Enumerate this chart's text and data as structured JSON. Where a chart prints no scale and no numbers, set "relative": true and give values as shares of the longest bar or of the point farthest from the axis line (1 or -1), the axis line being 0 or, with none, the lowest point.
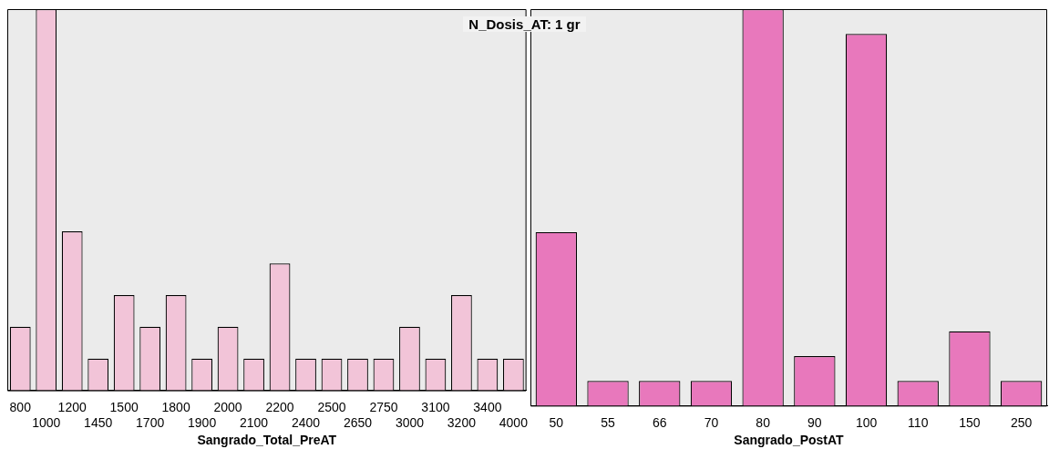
{
  "chart_data": [
    {
      "type": "bar",
      "title": "N_Dosis_AT: 1 gr",
      "xlabel": "Sangrado_Total_PreAT",
      "relative": true,
      "grid": false,
      "legend": false,
      "categories": [
        "800",
        "1000",
        "1200",
        "1450",
        "1500",
        "1700",
        "1800",
        "1900",
        "2000",
        "2100",
        "2200",
        "2400",
        "2500",
        "2650",
        "2750",
        "3000",
        "3100",
        "3200",
        "3400",
        "4000"
      ],
      "series": [
        {
          "color": "#f2c4d8",
          "values": [
            0.167,
            1,
            0.417,
            0.083,
            0.25,
            0.167,
            0.25,
            0.083,
            0.167,
            0.083,
            0.333,
            0.083,
            0.083,
            0.083,
            0.083,
            0.167,
            0.083,
            0.25,
            0.083,
            0.083
          ]
        }
      ]
    },
    {
      "type": "bar",
      "xlabel": "Sangrado_PostAT",
      "relative": true,
      "grid": false,
      "legend": false,
      "categories": [
        "50",
        "55",
        "66",
        "70",
        "80",
        "90",
        "100",
        "110",
        "150",
        "250"
      ],
      "series": [
        {
          "color": "#e878bc",
          "values": [
            0.4375,
            0.0625,
            0.0625,
            0.0625,
            1,
            0.125,
            0.9375,
            0.0625,
            0.1875,
            0.0625
          ]
        }
      ]
    }
  ]
}
